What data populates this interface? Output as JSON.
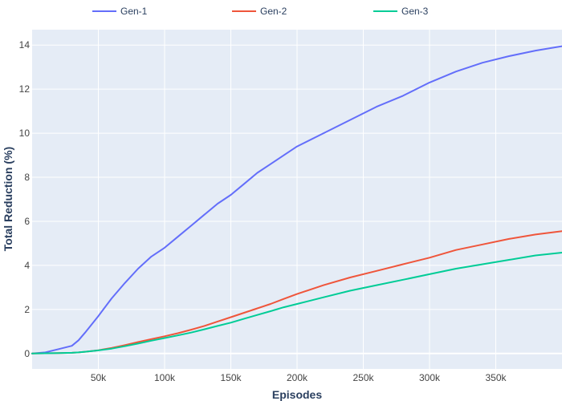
{
  "chart_data": {
    "type": "line",
    "xlabel": "Episodes",
    "ylabel": "Total Reduction (%)",
    "xlim": [
      0,
      400000
    ],
    "ylim": [
      -0.7,
      14.7
    ],
    "x_ticks": [
      50000,
      100000,
      150000,
      200000,
      250000,
      300000,
      350000
    ],
    "x_tick_labels": [
      "50k",
      "100k",
      "150k",
      "200k",
      "250k",
      "300k",
      "350k"
    ],
    "y_ticks": [
      0,
      2,
      4,
      6,
      8,
      10,
      12,
      14
    ],
    "y_tick_labels": [
      "0",
      "2",
      "4",
      "6",
      "8",
      "10",
      "12",
      "14"
    ],
    "grid": true,
    "legend_position": "top",
    "x": [
      0,
      10000,
      20000,
      30000,
      35000,
      40000,
      50000,
      60000,
      70000,
      80000,
      90000,
      100000,
      110000,
      120000,
      130000,
      140000,
      150000,
      160000,
      170000,
      180000,
      190000,
      200000,
      220000,
      240000,
      260000,
      280000,
      300000,
      320000,
      340000,
      360000,
      380000,
      400000
    ],
    "series": [
      {
        "name": "Gen-1",
        "color": "#636efa",
        "values": [
          0,
          0.05,
          0.2,
          0.35,
          0.6,
          0.95,
          1.7,
          2.5,
          3.2,
          3.85,
          4.4,
          4.8,
          5.3,
          5.8,
          6.3,
          6.8,
          7.2,
          7.7,
          8.2,
          8.6,
          9.0,
          9.4,
          10.0,
          10.6,
          11.2,
          11.7,
          12.3,
          12.8,
          13.2,
          13.5,
          13.75,
          13.95
        ]
      },
      {
        "name": "Gen-2",
        "color": "#ef553b",
        "values": [
          0,
          0.01,
          0.02,
          0.03,
          0.05,
          0.08,
          0.15,
          0.25,
          0.38,
          0.52,
          0.65,
          0.78,
          0.92,
          1.08,
          1.25,
          1.45,
          1.65,
          1.85,
          2.05,
          2.25,
          2.48,
          2.7,
          3.1,
          3.45,
          3.75,
          4.05,
          4.35,
          4.7,
          4.95,
          5.2,
          5.4,
          5.55
        ]
      },
      {
        "name": "Gen-3",
        "color": "#00cc96",
        "values": [
          0,
          0.01,
          0.02,
          0.03,
          0.05,
          0.08,
          0.14,
          0.22,
          0.33,
          0.45,
          0.58,
          0.7,
          0.82,
          0.95,
          1.1,
          1.25,
          1.4,
          1.58,
          1.75,
          1.92,
          2.1,
          2.25,
          2.55,
          2.85,
          3.1,
          3.35,
          3.6,
          3.85,
          4.05,
          4.25,
          4.45,
          4.58
        ]
      }
    ]
  }
}
